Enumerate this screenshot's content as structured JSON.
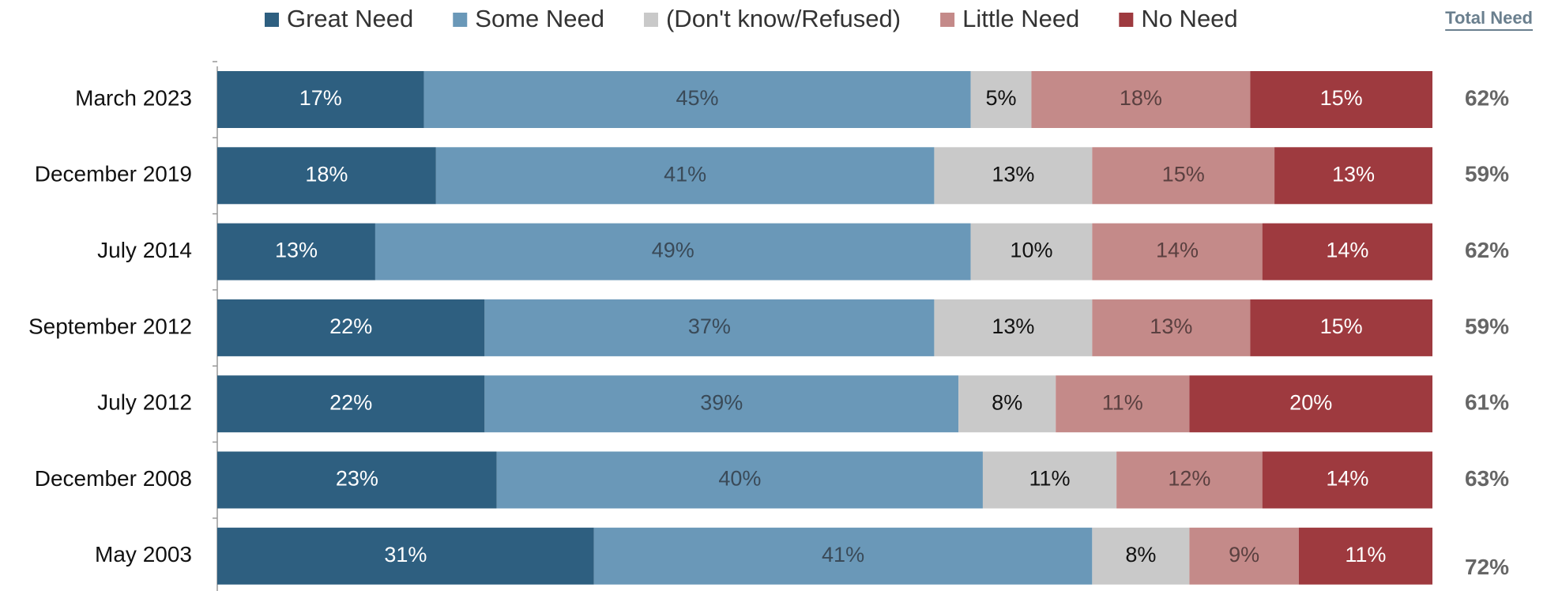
{
  "chart_data": {
    "type": "stacked_bar_horizontal",
    "categories": [
      "March 2023",
      "December 2019",
      "July 2014",
      "September 2012",
      "July 2012",
      "December 2008",
      "May 2003"
    ],
    "series": [
      {
        "name": "Great Need",
        "color": "#2e5f80",
        "label_color": "#ffffff",
        "values": [
          17,
          18,
          13,
          22,
          22,
          23,
          31
        ],
        "value_labels": [
          "17%",
          "18%",
          "13%",
          "22%",
          "22%",
          "23%",
          "31%"
        ]
      },
      {
        "name": "Some Need",
        "color": "#6a98b8",
        "label_color": "#3a4a58",
        "values": [
          45,
          41,
          49,
          37,
          39,
          40,
          41
        ],
        "value_labels": [
          "45%",
          "41%",
          "49%",
          "37%",
          "39%",
          "40%",
          "41%"
        ]
      },
      {
        "name": "(Don't know/Refused)",
        "color": "#c9c9c9",
        "label_color": "#111111",
        "values": [
          5,
          13,
          10,
          13,
          8,
          11,
          8
        ],
        "value_labels": [
          "5%",
          "13%",
          "10%",
          "13%",
          "8%",
          "11%",
          "8%"
        ]
      },
      {
        "name": "Little Need",
        "color": "#c48a89",
        "label_color": "#5a4040",
        "values": [
          18,
          15,
          14,
          13,
          11,
          12,
          9
        ],
        "value_labels": [
          "18%",
          "15%",
          "14%",
          "13%",
          "11%",
          "12%",
          "9%"
        ]
      },
      {
        "name": "No Need",
        "color": "#9e3a3f",
        "label_color": "#ffffff",
        "values": [
          15,
          13,
          14,
          15,
          20,
          14,
          11
        ],
        "value_labels": [
          "15%",
          "13%",
          "14%",
          "15%",
          "20%",
          "14%",
          "11%"
        ]
      }
    ],
    "totals": {
      "name": "Total Need",
      "values": [
        62,
        59,
        62,
        59,
        61,
        63,
        72
      ],
      "value_labels": [
        "62%",
        "59%",
        "62%",
        "59%",
        "61%",
        "63%",
        "72%"
      ]
    },
    "xlim": [
      0,
      100
    ]
  }
}
